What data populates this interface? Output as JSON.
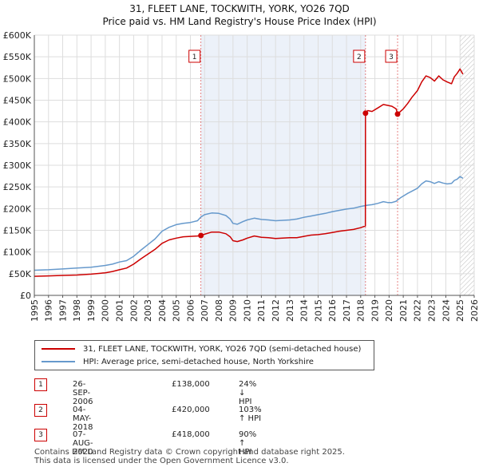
{
  "title_line1": "31, FLEET LANE, TOCKWITH, YORK, YO26 7QD",
  "title_line2": "Price paid vs. HM Land Registry's House Price Index (HPI)",
  "chart_data": {
    "type": "line",
    "title": "31, FLEET LANE, TOCKWITH, YORK, YO26 7QD",
    "subtitle": "Price paid vs. HM Land Registry's House Price Index (HPI)",
    "xlabel": "",
    "ylabel": "",
    "xlim": [
      1995,
      2026
    ],
    "ylim": [
      0,
      600000
    ],
    "x_ticks": [
      "1995",
      "1996",
      "1997",
      "1998",
      "1999",
      "2000",
      "2001",
      "2002",
      "2003",
      "2004",
      "2005",
      "2006",
      "2007",
      "2008",
      "2009",
      "2010",
      "2011",
      "2012",
      "2013",
      "2014",
      "2015",
      "2016",
      "2017",
      "2018",
      "2019",
      "2020",
      "2021",
      "2022",
      "2023",
      "2024",
      "2025",
      "2026"
    ],
    "y_ticks": [
      {
        "value": 0,
        "label": "£0"
      },
      {
        "value": 50000,
        "label": "£50K"
      },
      {
        "value": 100000,
        "label": "£100K"
      },
      {
        "value": 150000,
        "label": "£150K"
      },
      {
        "value": 200000,
        "label": "£200K"
      },
      {
        "value": 250000,
        "label": "£250K"
      },
      {
        "value": 300000,
        "label": "£300K"
      },
      {
        "value": 350000,
        "label": "£350K"
      },
      {
        "value": 400000,
        "label": "£400K"
      },
      {
        "value": 450000,
        "label": "£450K"
      },
      {
        "value": 500000,
        "label": "£500K"
      },
      {
        "value": 550000,
        "label": "£550K"
      },
      {
        "value": 600000,
        "label": "£600K"
      }
    ],
    "grid": true,
    "series": [
      {
        "name": "31, FLEET LANE, TOCKWITH, YORK, YO26 7QD (semi-detached house)",
        "color": "#cc0000",
        "x": [
          1995.0,
          1996.0,
          1997.0,
          1998.0,
          1999.0,
          2000.0,
          2000.5,
          2001.0,
          2001.5,
          2002.0,
          2002.5,
          2003.0,
          2003.5,
          2004.0,
          2004.5,
          2005.0,
          2005.5,
          2006.0,
          2006.5,
          2006.74,
          2007.0,
          2007.5,
          2008.0,
          2008.5,
          2008.8,
          2009.0,
          2009.3,
          2009.7,
          2010.0,
          2010.5,
          2011.0,
          2011.5,
          2012.0,
          2012.5,
          2013.0,
          2013.5,
          2014.0,
          2014.5,
          2015.0,
          2015.5,
          2016.0,
          2016.5,
          2017.0,
          2017.5,
          2018.0,
          2018.33,
          2018.34,
          2018.5,
          2018.8,
          2019.2,
          2019.6,
          2019.9,
          2020.2,
          2020.5,
          2020.6,
          2020.8,
          2021.0,
          2021.3,
          2021.6,
          2022.0,
          2022.3,
          2022.6,
          2022.9,
          2023.2,
          2023.5,
          2023.8,
          2024.1,
          2024.4,
          2024.6,
          2024.8,
          2025.0,
          2025.2
        ],
        "values": [
          44000,
          45000,
          46000,
          47000,
          49000,
          52000,
          55000,
          59000,
          63000,
          72000,
          84000,
          95000,
          106000,
          120000,
          128000,
          132000,
          135000,
          136000,
          137000,
          138000,
          141000,
          146000,
          146000,
          142000,
          135000,
          126000,
          124000,
          128000,
          132000,
          137000,
          134000,
          133000,
          131000,
          132000,
          133000,
          133000,
          136000,
          139000,
          140000,
          142000,
          145000,
          148000,
          150000,
          152000,
          156000,
          160000,
          420000,
          426000,
          424000,
          432000,
          440000,
          438000,
          436000,
          430000,
          418000,
          424000,
          430000,
          442000,
          456000,
          472000,
          492000,
          506000,
          502000,
          494000,
          506000,
          497000,
          492000,
          488000,
          504000,
          512000,
          522000,
          510000
        ]
      },
      {
        "name": "HPI: Average price, semi-detached house, North Yorkshire",
        "color": "#6699cc",
        "x": [
          1995.0,
          1996.0,
          1997.0,
          1998.0,
          1999.0,
          2000.0,
          2000.5,
          2001.0,
          2001.5,
          2002.0,
          2002.5,
          2003.0,
          2003.5,
          2004.0,
          2004.5,
          2005.0,
          2005.5,
          2006.0,
          2006.5,
          2006.74,
          2007.0,
          2007.5,
          2008.0,
          2008.5,
          2008.8,
          2009.0,
          2009.3,
          2009.7,
          2010.0,
          2010.5,
          2011.0,
          2011.5,
          2012.0,
          2012.5,
          2013.0,
          2013.5,
          2014.0,
          2014.5,
          2015.0,
          2015.5,
          2016.0,
          2016.5,
          2017.0,
          2017.5,
          2018.0,
          2018.33,
          2018.34,
          2018.5,
          2018.8,
          2019.2,
          2019.6,
          2019.9,
          2020.2,
          2020.5,
          2020.6,
          2020.8,
          2021.0,
          2021.3,
          2021.6,
          2022.0,
          2022.3,
          2022.6,
          2022.9,
          2023.2,
          2023.5,
          2023.8,
          2024.1,
          2024.4,
          2024.6,
          2024.8,
          2025.0,
          2025.2
        ],
        "values": [
          58000,
          59000,
          61000,
          63000,
          65000,
          69000,
          72000,
          77000,
          80000,
          90000,
          104000,
          117000,
          130000,
          148000,
          157000,
          163000,
          166000,
          168000,
          172000,
          181000,
          186000,
          190000,
          189000,
          184000,
          176000,
          166000,
          164000,
          170000,
          174000,
          178000,
          175000,
          174000,
          172000,
          173000,
          174000,
          176000,
          180000,
          183000,
          186000,
          189000,
          193000,
          196000,
          199000,
          201000,
          205000,
          207000,
          207000,
          208000,
          209000,
          212000,
          216000,
          214000,
          214000,
          217000,
          220000,
          225000,
          229000,
          235000,
          240000,
          247000,
          257000,
          264000,
          262000,
          258000,
          262000,
          259000,
          257000,
          258000,
          265000,
          268000,
          274000,
          270000
        ]
      }
    ],
    "annotations": [
      {
        "label": "1",
        "x": 2006.74,
        "value": 138000
      },
      {
        "label": "2",
        "x": 2018.34,
        "value": 420000
      },
      {
        "label": "3",
        "x": 2020.6,
        "value": 418000
      }
    ],
    "forecast_hatch_from": 2025.0
  },
  "legend": {
    "property_label": "31, FLEET LANE, TOCKWITH, YORK, YO26 7QD (semi-detached house)",
    "hpi_label": "HPI: Average price, semi-detached house, North Yorkshire"
  },
  "transactions": [
    {
      "num": "1",
      "date": "26-SEP-2006",
      "price": "£138,000",
      "hpi": "24% ↓ HPI"
    },
    {
      "num": "2",
      "date": "04-MAY-2018",
      "price": "£420,000",
      "hpi": "103% ↑ HPI"
    },
    {
      "num": "3",
      "date": "07-AUG-2020",
      "price": "£418,000",
      "hpi": "90% ↑ HPI"
    }
  ],
  "footer_line1": "Contains HM Land Registry data © Crown copyright and database right 2025.",
  "footer_line2": "This data is licensed under the Open Government Licence v3.0."
}
